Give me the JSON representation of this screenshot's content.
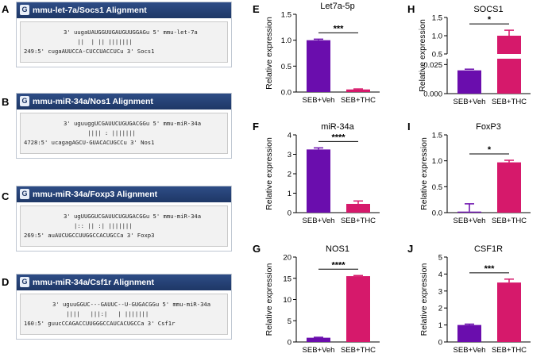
{
  "alignments": [
    {
      "panel": "A",
      "title": "mmu-let-7a/Socs1 Alignment",
      "line1": "3' uugaUAUGGUUGAUGUUGGAGu 5' mmu-let-7a",
      "line2": "    ||  | || ||||||| ",
      "line3": "249:5' cugaAUUCCA-CUCCUACCUCu 3' Socs1"
    },
    {
      "panel": "B",
      "title": "mmu-miR-34a/Nos1 Alignment",
      "line1": "3' uguuggUCGAUUCUGUGACGGu 5' mmu-miR-34a",
      "line2": "       |||| : ||||||| ",
      "line3": "4728:5' ucagagAGCU-GUACACUGCCu 3' Nos1"
    },
    {
      "panel": "C",
      "title": "mmu-miR-34a/Foxp3 Alignment",
      "line1": "3' ugUUGGUCGAUUCUGUGACGGu 5' mmu-miR-34a",
      "line2": "   |:: || :| ||||||| ",
      "line3": "269:5' auAUCUGCCUUGGCCACUGCCa 3' Foxp3"
    },
    {
      "panel": "D",
      "title": "mmu-miR-34a/Csf1r Alignment",
      "line1": "3' uguuGGUC---GAUUC--U-GUGACGGu 5' mmu-miR-34a",
      "line2": "    ||||   |||:|   | ||||||| ",
      "line3": "160:5' guucCCAGACCUUGGGCCAUCACUGCCa 3' Csf1r"
    }
  ],
  "chart_data": [
    {
      "panel": "E",
      "type": "bar",
      "title": "Let7a-5p",
      "ylabel": "Relative  expression",
      "categories": [
        "SEB+Veh",
        "SEB+THC"
      ],
      "values": [
        1.0,
        0.05
      ],
      "errors": [
        0.02,
        0.01
      ],
      "colors": [
        "#6a0dad",
        "#d6196b"
      ],
      "ylim": [
        0,
        1.5
      ],
      "yticks": [
        "0.0",
        "0.5",
        "1.0",
        "1.5"
      ],
      "tick_values": [
        0,
        0.5,
        1.0,
        1.5
      ],
      "significance": "***"
    },
    {
      "panel": "F",
      "type": "bar",
      "title": "miR-34a",
      "ylabel": "Relative  expression",
      "categories": [
        "SEB+Veh",
        "SEB+THC"
      ],
      "values": [
        3.25,
        0.45
      ],
      "errors": [
        0.08,
        0.15
      ],
      "colors": [
        "#6a0dad",
        "#d6196b"
      ],
      "ylim": [
        0,
        4
      ],
      "yticks": [
        "0",
        "1",
        "2",
        "3",
        "4"
      ],
      "tick_values": [
        0,
        1,
        2,
        3,
        4
      ],
      "significance": "****"
    },
    {
      "panel": "G",
      "type": "bar",
      "title": "NOS1",
      "ylabel": "Relative  expression",
      "categories": [
        "SEB+Veh",
        "SEB+THC"
      ],
      "values": [
        1.0,
        15.5
      ],
      "errors": [
        0.1,
        0.15
      ],
      "colors": [
        "#6a0dad",
        "#d6196b"
      ],
      "ylim": [
        0,
        20
      ],
      "yticks": [
        "0",
        "5",
        "10",
        "15",
        "20"
      ],
      "tick_values": [
        0,
        5,
        10,
        15,
        20
      ],
      "significance": "****"
    },
    {
      "panel": "H",
      "type": "bar",
      "title": "SOCS1",
      "ylabel": "Relative  expression",
      "categories": [
        "SEB+Veh",
        "SEB+THC"
      ],
      "values": [
        0.02,
        1.0
      ],
      "errors": [
        0.001,
        0.15
      ],
      "colors": [
        "#6a0dad",
        "#d6196b"
      ],
      "broken_axis": true,
      "upper_ylim": [
        0.5,
        1.5
      ],
      "lower_ylim": [
        0,
        0.03
      ],
      "upper_yticks": [
        "0.5",
        "1.0",
        "1.5"
      ],
      "lower_yticks": [
        "0.000",
        "0.025"
      ],
      "significance": "*"
    },
    {
      "panel": "I",
      "type": "bar",
      "title": "FoxP3",
      "ylabel": "Relative  expression",
      "categories": [
        "SEB+Veh",
        "SEB+THC"
      ],
      "values": [
        0.02,
        0.97
      ],
      "errors": [
        0.15,
        0.04
      ],
      "colors": [
        "#6a0dad",
        "#d6196b"
      ],
      "ylim": [
        0,
        1.5
      ],
      "yticks": [
        "0.0",
        "0.5",
        "1.0",
        "1.5"
      ],
      "tick_values": [
        0,
        0.5,
        1.0,
        1.5
      ],
      "significance": "*"
    },
    {
      "panel": "J",
      "type": "bar",
      "title": "CSF1R",
      "ylabel": "Relative  expression",
      "categories": [
        "SEB+Veh",
        "SEB+THC"
      ],
      "values": [
        1.0,
        3.5
      ],
      "errors": [
        0.05,
        0.2
      ],
      "colors": [
        "#6a0dad",
        "#d6196b"
      ],
      "ylim": [
        0,
        5
      ],
      "yticks": [
        "0",
        "1",
        "2",
        "3",
        "4",
        "5"
      ],
      "tick_values": [
        0,
        1,
        2,
        3,
        4,
        5
      ],
      "significance": "***"
    }
  ]
}
